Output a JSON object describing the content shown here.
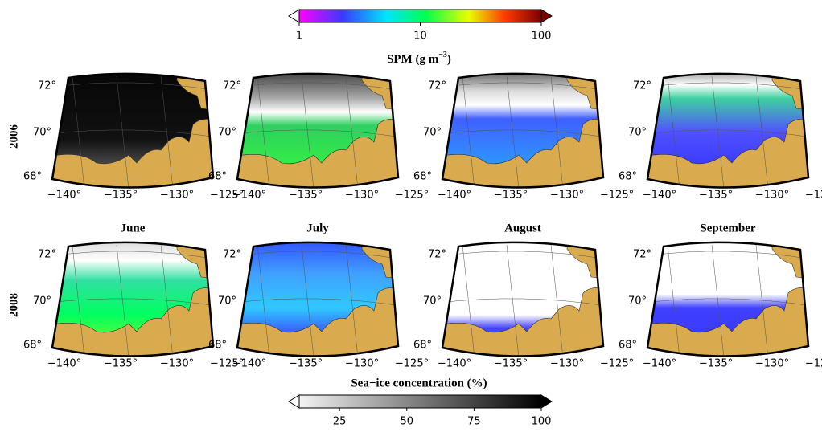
{
  "spm_colorbar": {
    "title": [
      "SPM (g m",
      "−3",
      ")"
    ],
    "ticks": [
      1,
      10,
      100
    ],
    "range": [
      1,
      100
    ],
    "log": true
  },
  "ice_colorbar": {
    "title": "Sea−ice concentration (%)",
    "ticks": [
      25,
      50,
      75,
      100
    ],
    "range": [
      10,
      100
    ],
    "log": false
  },
  "rows": [
    "2006",
    "2008"
  ],
  "months": [
    "June",
    "July",
    "August",
    "September"
  ],
  "lat_labels": [
    "72°",
    "70°",
    "68°"
  ],
  "lon_labels": [
    "−140°",
    "−135°",
    "−130°",
    "−125°"
  ]
}
